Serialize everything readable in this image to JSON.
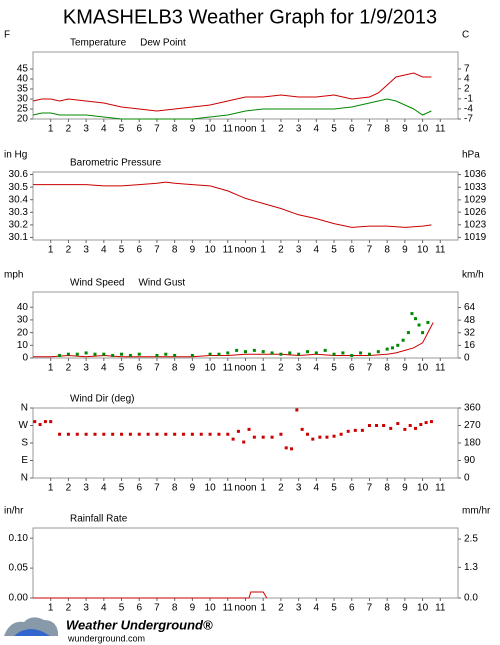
{
  "title": "KMASHELB3 Weather Graph for 1/9/2013",
  "logo": {
    "name": "Weather Underground®",
    "url": "wunderground.com"
  },
  "chart_data": [
    {
      "type": "line",
      "y_label": "F",
      "y2_label": "C",
      "xlim": [
        0,
        24
      ],
      "xticks": [
        1,
        2,
        3,
        4,
        5,
        6,
        7,
        8,
        9,
        10,
        11,
        {
          "value": 12,
          "label": "noon"
        },
        {
          "value": 13,
          "label": "1"
        },
        {
          "value": 14,
          "label": "2"
        },
        {
          "value": 15,
          "label": "3"
        },
        {
          "value": 16,
          "label": "4"
        },
        {
          "value": 17,
          "label": "5"
        },
        {
          "value": 18,
          "label": "6"
        },
        {
          "value": 19,
          "label": "7"
        },
        {
          "value": 20,
          "label": "8"
        },
        {
          "value": 21,
          "label": "9"
        },
        {
          "value": 22,
          "label": "10"
        },
        {
          "value": 23,
          "label": "11"
        }
      ],
      "ylim": [
        20,
        53.5
      ],
      "yticks": [
        45,
        40,
        35,
        30,
        25,
        20
      ],
      "y2lim": [
        -6.7,
        11.9
      ],
      "y2ticks": [
        {
          "value": 7.2,
          "label": "7"
        },
        {
          "value": 4.4,
          "label": "4"
        },
        {
          "value": 1.7,
          "label": "2"
        },
        {
          "value": -1.1,
          "label": "-1"
        },
        {
          "value": -3.9,
          "label": "-4"
        },
        {
          "value": -6.7,
          "label": "-7"
        }
      ],
      "series": [
        {
          "name": "Temperature",
          "color": "#cc0000",
          "mark": "line",
          "x": [
            0,
            0.5,
            1,
            1.5,
            2,
            3,
            4,
            5,
            6,
            7,
            8,
            9,
            10,
            11,
            12,
            13,
            14,
            15,
            16,
            17,
            18,
            19,
            19.5,
            20,
            20.5,
            21,
            21.5,
            22,
            22.5
          ],
          "values": [
            29,
            30,
            30,
            29,
            30,
            29,
            28,
            26,
            25,
            24,
            25,
            26,
            27,
            29,
            31,
            31,
            32,
            31,
            31,
            32,
            30,
            31,
            33,
            37,
            41,
            42,
            43,
            41,
            41
          ]
        },
        {
          "name": "Dew Point",
          "color": "#008800",
          "mark": "line",
          "x": [
            0,
            0.5,
            1,
            1.5,
            2,
            3,
            4,
            5,
            6,
            7,
            8,
            9,
            10,
            11,
            12,
            13,
            14,
            15,
            16,
            17,
            18,
            19,
            19.5,
            20,
            20.5,
            21,
            21.5,
            22,
            22.5
          ],
          "values": [
            22,
            23,
            23,
            22,
            22,
            22,
            21,
            20,
            20,
            20,
            20,
            20,
            21,
            22,
            24,
            25,
            25,
            25,
            25,
            25,
            26,
            28,
            29,
            30,
            29,
            27,
            25,
            22,
            24
          ]
        }
      ]
    },
    {
      "type": "line",
      "y_label": "in Hg",
      "y2_label": "hPa",
      "xlim": [
        0,
        24
      ],
      "xticks": [
        1,
        2,
        3,
        4,
        5,
        6,
        7,
        8,
        9,
        10,
        11,
        {
          "value": 12,
          "label": "noon"
        },
        {
          "value": 13,
          "label": "1"
        },
        {
          "value": 14,
          "label": "2"
        },
        {
          "value": 15,
          "label": "3"
        },
        {
          "value": 16,
          "label": "4"
        },
        {
          "value": 17,
          "label": "5"
        },
        {
          "value": 18,
          "label": "6"
        },
        {
          "value": 19,
          "label": "7"
        },
        {
          "value": 20,
          "label": "8"
        },
        {
          "value": 21,
          "label": "9"
        },
        {
          "value": 22,
          "label": "10"
        },
        {
          "value": 23,
          "label": "11"
        }
      ],
      "ylim": [
        30.08,
        30.62
      ],
      "yticks": [
        30.6,
        30.5,
        30.4,
        30.3,
        30.2,
        30.1
      ],
      "y2lim": [
        1018.6,
        1036.9
      ],
      "y2ticks": [
        {
          "value": 1036.2,
          "label": "1036"
        },
        {
          "value": 1032.8,
          "label": "1033"
        },
        {
          "value": 1029.4,
          "label": "1029"
        },
        {
          "value": 1026.1,
          "label": "1026"
        },
        {
          "value": 1022.7,
          "label": "1023"
        },
        {
          "value": 1019.3,
          "label": "1019"
        }
      ],
      "series": [
        {
          "name": "Barometric Pressure",
          "color": "#cc0000",
          "mark": "line",
          "x": [
            0,
            1,
            2,
            3,
            4,
            5,
            6,
            7,
            7.5,
            8,
            9,
            10,
            11,
            12,
            13,
            14,
            15,
            16,
            17,
            18,
            19,
            20,
            21,
            22,
            22.5
          ],
          "values": [
            30.52,
            30.52,
            30.52,
            30.52,
            30.51,
            30.51,
            30.52,
            30.53,
            30.54,
            30.53,
            30.52,
            30.51,
            30.47,
            30.41,
            30.37,
            30.33,
            30.28,
            30.25,
            30.21,
            30.18,
            30.19,
            30.19,
            30.18,
            30.19,
            30.2
          ]
        }
      ]
    },
    {
      "type": "line",
      "y_label": "mph",
      "y2_label": "km/h",
      "xlim": [
        0,
        24
      ],
      "xticks": [
        1,
        2,
        3,
        4,
        5,
        6,
        7,
        8,
        9,
        10,
        11,
        {
          "value": 12,
          "label": "noon"
        },
        {
          "value": 13,
          "label": "1"
        },
        {
          "value": 14,
          "label": "2"
        },
        {
          "value": 15,
          "label": "3"
        },
        {
          "value": 16,
          "label": "4"
        },
        {
          "value": 17,
          "label": "5"
        },
        {
          "value": 18,
          "label": "6"
        },
        {
          "value": 19,
          "label": "7"
        },
        {
          "value": 20,
          "label": "8"
        },
        {
          "value": 21,
          "label": "9"
        },
        {
          "value": 22,
          "label": "10"
        },
        {
          "value": 23,
          "label": "11"
        }
      ],
      "ylim": [
        0,
        52
      ],
      "yticks": [
        40,
        30,
        20,
        10,
        0
      ],
      "y2lim": [
        0,
        83.7
      ],
      "y2ticks": [
        64,
        48,
        32,
        16,
        0
      ],
      "series": [
        {
          "name": "Wind Speed",
          "color": "#cc0000",
          "mark": "line",
          "x": [
            0,
            1,
            2,
            3,
            4,
            5,
            6,
            7,
            8,
            9,
            10,
            11,
            12,
            13,
            14,
            15,
            16,
            17,
            18,
            19,
            20,
            20.5,
            21,
            21.5,
            22,
            22.3,
            22.6
          ],
          "values": [
            1,
            1,
            2,
            1,
            2,
            1,
            1,
            1,
            1,
            1,
            2,
            2,
            3,
            3,
            3,
            2,
            3,
            2,
            2,
            2,
            3,
            4,
            6,
            8,
            12,
            20,
            28
          ]
        },
        {
          "name": "Wind Gust",
          "color": "#008800",
          "mark": "square",
          "x": [
            1.5,
            2,
            2.5,
            3,
            3.5,
            4,
            4.5,
            5,
            5.5,
            6,
            7,
            7.5,
            8,
            9,
            10,
            10.5,
            11,
            11.5,
            12,
            12.5,
            13,
            13.5,
            14,
            14.5,
            15,
            15.5,
            16,
            16.5,
            17,
            17.5,
            18,
            18.5,
            19,
            19.5,
            20,
            20.3,
            20.6,
            20.9,
            21.2,
            21.4,
            21.6,
            21.8,
            22,
            22.3
          ],
          "values": [
            2,
            3,
            3,
            4,
            3,
            3,
            2,
            3,
            2,
            3,
            2,
            3,
            2,
            2,
            3,
            3,
            4,
            6,
            5,
            6,
            5,
            4,
            3,
            4,
            3,
            5,
            4,
            6,
            3,
            4,
            2,
            4,
            3,
            5,
            7,
            8,
            10,
            14,
            20,
            35,
            31,
            26,
            20,
            28
          ]
        }
      ]
    },
    {
      "type": "scatter",
      "xlim": [
        0,
        24
      ],
      "xticks": [
        1,
        2,
        3,
        4,
        5,
        6,
        7,
        8,
        9,
        10,
        11,
        {
          "value": 12,
          "label": "noon"
        },
        {
          "value": 13,
          "label": "1"
        },
        {
          "value": 14,
          "label": "2"
        },
        {
          "value": 15,
          "label": "3"
        },
        {
          "value": 16,
          "label": "4"
        },
        {
          "value": 17,
          "label": "5"
        },
        {
          "value": 18,
          "label": "6"
        },
        {
          "value": 19,
          "label": "7"
        },
        {
          "value": 20,
          "label": "8"
        },
        {
          "value": 21,
          "label": "9"
        },
        {
          "value": 22,
          "label": "10"
        },
        {
          "value": 23,
          "label": "11"
        }
      ],
      "ylim": [
        0,
        360
      ],
      "yticks": [
        {
          "value": 360,
          "label": "N"
        },
        {
          "value": 270,
          "label": "W"
        },
        {
          "value": 180,
          "label": "S"
        },
        {
          "value": 90,
          "label": "E"
        },
        {
          "value": 0,
          "label": "N"
        }
      ],
      "y2lim": [
        0,
        360
      ],
      "y2ticks": [
        360,
        270,
        180,
        90,
        0
      ],
      "series": [
        {
          "name": "Wind Dir (deg)",
          "color": "#cc0000",
          "mark": "square",
          "x": [
            0.1,
            0.4,
            0.7,
            1,
            1.5,
            2,
            2.5,
            3,
            3.5,
            4,
            4.5,
            5,
            5.5,
            6,
            6.5,
            7,
            7.5,
            8,
            8.5,
            9,
            9.5,
            10,
            10.5,
            11,
            11.3,
            11.6,
            11.9,
            12.2,
            12.5,
            13,
            13.5,
            14,
            14.3,
            14.6,
            14.9,
            15.2,
            15.5,
            15.8,
            16.2,
            16.6,
            17,
            17.4,
            17.8,
            18.2,
            18.6,
            19,
            19.4,
            19.8,
            20.2,
            20.6,
            21,
            21.3,
            21.6,
            21.9,
            22.2,
            22.5
          ],
          "values": [
            290,
            275,
            290,
            290,
            225,
            225,
            225,
            225,
            225,
            225,
            225,
            225,
            225,
            225,
            225,
            225,
            225,
            225,
            225,
            225,
            225,
            225,
            225,
            225,
            200,
            240,
            185,
            250,
            210,
            210,
            210,
            225,
            155,
            150,
            350,
            250,
            225,
            200,
            210,
            210,
            215,
            225,
            240,
            245,
            245,
            270,
            270,
            270,
            255,
            280,
            250,
            270,
            255,
            275,
            285,
            290
          ]
        }
      ]
    },
    {
      "type": "line",
      "y_label": "in/hr",
      "y2_label": "mm/hr",
      "xlim": [
        0,
        24
      ],
      "xticks": [
        1,
        2,
        3,
        4,
        5,
        6,
        7,
        8,
        9,
        10,
        11,
        {
          "value": 12,
          "label": "noon"
        },
        {
          "value": 13,
          "label": "1"
        },
        {
          "value": 14,
          "label": "2"
        },
        {
          "value": 15,
          "label": "3"
        },
        {
          "value": 16,
          "label": "4"
        },
        {
          "value": 17,
          "label": "5"
        },
        {
          "value": 18,
          "label": "6"
        },
        {
          "value": 19,
          "label": "7"
        },
        {
          "value": 20,
          "label": "8"
        },
        {
          "value": 21,
          "label": "9"
        },
        {
          "value": 22,
          "label": "10"
        },
        {
          "value": 23,
          "label": "11"
        }
      ],
      "ylim": [
        0,
        0.117
      ],
      "yticks": [
        {
          "value": 0.1,
          "label": "0.10"
        },
        {
          "value": 0.05,
          "label": "0.05"
        },
        {
          "value": 0,
          "label": "0.00"
        }
      ],
      "y2lim": [
        0,
        2.97
      ],
      "y2ticks": [
        2.5,
        1.3,
        {
          "value": 0,
          "label": "0.0"
        }
      ],
      "series": [
        {
          "name": "Rainfall Rate",
          "color": "#cc0000",
          "mark": "line",
          "x": [
            0,
            12.2,
            12.3,
            13,
            13.2
          ],
          "values": [
            0,
            0,
            0.01,
            0.01,
            0
          ]
        }
      ]
    }
  ]
}
